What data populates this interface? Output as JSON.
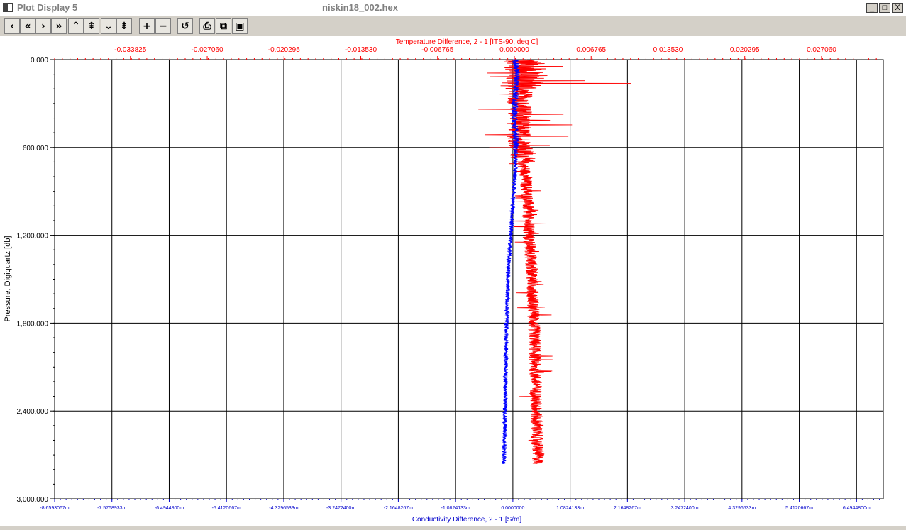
{
  "window": {
    "title": "Plot Display 5",
    "file_name": "niskin18_002.hex",
    "minimize_label": "_",
    "maximize_label": "□",
    "close_label": "X"
  },
  "toolbar": {
    "buttons": [
      {
        "name": "prev-icon",
        "glyph": "‹"
      },
      {
        "name": "first-icon",
        "glyph": "«"
      },
      {
        "name": "next-icon",
        "glyph": "›"
      },
      {
        "name": "last-icon",
        "glyph": "»"
      },
      {
        "name": "up-icon",
        "glyph": "⌃"
      },
      {
        "name": "page-up-icon",
        "glyph": "⇞"
      },
      {
        "name": "down-icon",
        "glyph": "⌄"
      },
      {
        "name": "page-down-icon",
        "glyph": "⇟"
      },
      {
        "name": "zoom-in-icon",
        "glyph": "+"
      },
      {
        "name": "zoom-out-icon",
        "glyph": "−"
      },
      {
        "name": "undo-icon",
        "glyph": "↺"
      },
      {
        "name": "print-icon",
        "glyph": "⎙"
      },
      {
        "name": "copy-icon",
        "glyph": "⧉"
      },
      {
        "name": "save-icon",
        "glyph": "▣"
      }
    ]
  },
  "chart_data": {
    "type": "line",
    "title": "",
    "x2label": "Temperature Difference, 2 - 1 [ITS-90, deg C]",
    "xlabel": "Conductivity Difference, 2 - 1 [S/m]",
    "ylabel": "Pressure, Digiquartz [db]",
    "ylim": [
      0,
      3000
    ],
    "y_inverted": true,
    "yticks": [
      "0.000",
      "600.000",
      "1,200.000",
      "1,800.000",
      "2,400.000",
      "3,000.000"
    ],
    "x2lim": [
      -0.0405,
      0.0325
    ],
    "x2ticks": [
      "-0.033825",
      "-0.027060",
      "-0.020295",
      "-0.013530",
      "-0.006765",
      "0.000000",
      "0.006765",
      "0.013530",
      "0.020295",
      "0.027060"
    ],
    "xlim": [
      -8.6593067,
      7.0
    ],
    "xticks": [
      "-8.6593067m",
      "-7.5768933m",
      "-6.4944800m",
      "-5.4120667m",
      "-4.3296533m",
      "-3.2472400m",
      "-2.1648267m",
      "-1.0824133m",
      "0.0000000",
      "1.0824133m",
      "2.1648267m",
      "3.2472400m",
      "4.3296533m",
      "5.4120667m",
      "6.4944800m"
    ],
    "grid": true,
    "series": [
      {
        "name": "Temperature Difference, 2 - 1 [ITS-90, deg C]",
        "color": "#ff0000",
        "axis": "top",
        "pressure": [
          0,
          50,
          100,
          110,
          150,
          200,
          250,
          300,
          350,
          380,
          400,
          450,
          500,
          550,
          600,
          650,
          700,
          750,
          800,
          900,
          1000,
          1100,
          1200,
          1300,
          1400,
          1500,
          1600,
          1700,
          1800,
          1900,
          2000,
          2100,
          2200,
          2300,
          2400,
          2500,
          2600,
          2700,
          2760
        ],
        "values": [
          0.0005,
          0.001,
          0.0015,
          0.001,
          0.0008,
          0.0006,
          0.0005,
          0.0004,
          0.0005,
          0.0006,
          0.0005,
          0.0004,
          0.0004,
          0.0005,
          0.0006,
          0.0007,
          0.0008,
          0.0009,
          0.001,
          0.0011,
          0.0012,
          0.0012,
          0.0013,
          0.0014,
          0.0015,
          0.0016,
          0.0016,
          0.0017,
          0.0017,
          0.0018,
          0.0018,
          0.0018,
          0.0019,
          0.0019,
          0.0019,
          0.002,
          0.002,
          0.0021,
          0.0021
        ]
      },
      {
        "name": "Conductivity Difference, 2 - 1 [S/m]",
        "color": "#0000ff",
        "axis": "bottom",
        "pressure": [
          0,
          100,
          200,
          300,
          400,
          500,
          600,
          700,
          800,
          900,
          1000,
          1100,
          1200,
          1300,
          1400,
          1500,
          1600,
          1700,
          1800,
          1900,
          2000,
          2100,
          2200,
          2300,
          2400,
          2500,
          2600,
          2700,
          2760
        ],
        "values": [
          0.05,
          0.08,
          0.06,
          0.04,
          0.03,
          0.05,
          0.06,
          0.05,
          0.04,
          0.02,
          0.0,
          -0.02,
          -0.04,
          -0.06,
          -0.08,
          -0.09,
          -0.1,
          -0.11,
          -0.12,
          -0.12,
          -0.13,
          -0.13,
          -0.14,
          -0.14,
          -0.15,
          -0.15,
          -0.16,
          -0.16,
          -0.17
        ]
      }
    ]
  }
}
